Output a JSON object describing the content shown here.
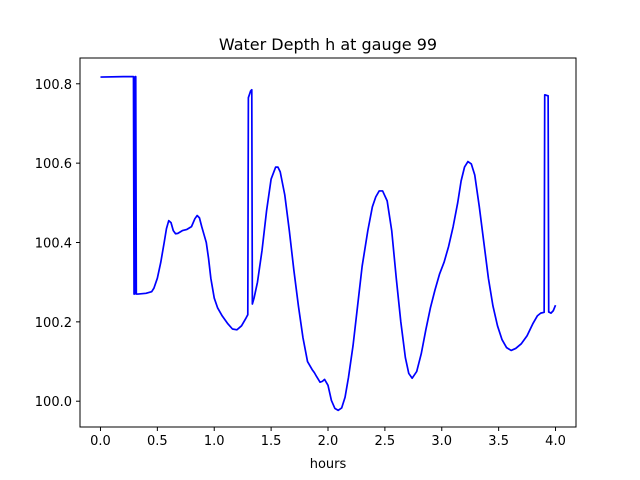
{
  "chart_data": {
    "type": "line",
    "title": "Water Depth h at gauge 99",
    "xlabel": "hours",
    "ylabel": "",
    "xlim": [
      -0.18,
      4.18
    ],
    "ylim": [
      99.935,
      100.865
    ],
    "x_ticks": [
      0.0,
      0.5,
      1.0,
      1.5,
      2.0,
      2.5,
      3.0,
      3.5,
      4.0
    ],
    "x_tick_labels": [
      "0.0",
      "0.5",
      "1.0",
      "1.5",
      "2.0",
      "2.5",
      "3.0",
      "3.5",
      "4.0"
    ],
    "y_ticks": [
      100.0,
      100.2,
      100.4,
      100.6,
      100.8
    ],
    "y_tick_labels": [
      "100.0",
      "100.2",
      "100.4",
      "100.6",
      "100.8"
    ],
    "grid": false,
    "series": [
      {
        "color": "#0000ff",
        "x": [
          0.0,
          0.2,
          0.29,
          0.295,
          0.3,
          0.305,
          0.31,
          0.315,
          0.32,
          0.33,
          0.4,
          0.45,
          0.47,
          0.5,
          0.53,
          0.56,
          0.58,
          0.6,
          0.62,
          0.64,
          0.66,
          0.68,
          0.72,
          0.76,
          0.8,
          0.83,
          0.85,
          0.87,
          0.89,
          0.91,
          0.93,
          0.95,
          0.97,
          1.0,
          1.03,
          1.07,
          1.12,
          1.16,
          1.2,
          1.24,
          1.28,
          1.295,
          1.3,
          1.32,
          1.33,
          1.335,
          1.35,
          1.38,
          1.42,
          1.46,
          1.5,
          1.54,
          1.56,
          1.58,
          1.62,
          1.66,
          1.7,
          1.74,
          1.78,
          1.82,
          1.86,
          1.88,
          1.9,
          1.93,
          1.95,
          1.97,
          2.0,
          2.03,
          2.06,
          2.09,
          2.12,
          2.15,
          2.18,
          2.22,
          2.26,
          2.3,
          2.35,
          2.39,
          2.42,
          2.45,
          2.48,
          2.52,
          2.56,
          2.6,
          2.64,
          2.68,
          2.71,
          2.74,
          2.78,
          2.82,
          2.86,
          2.9,
          2.94,
          2.98,
          3.02,
          3.06,
          3.1,
          3.14,
          3.17,
          3.2,
          3.23,
          3.26,
          3.29,
          3.33,
          3.37,
          3.41,
          3.45,
          3.49,
          3.53,
          3.57,
          3.61,
          3.65,
          3.7,
          3.75,
          3.8,
          3.84,
          3.87,
          3.9,
          3.905,
          3.91,
          3.93,
          3.935,
          3.94,
          3.96,
          3.98,
          4.0
        ],
        "y": [
          100.817,
          100.818,
          100.818,
          100.27,
          100.27,
          100.818,
          100.818,
          100.27,
          100.27,
          100.27,
          100.272,
          100.276,
          100.285,
          100.31,
          100.35,
          100.4,
          100.435,
          100.455,
          100.45,
          100.43,
          100.422,
          100.423,
          100.43,
          100.433,
          100.44,
          100.46,
          100.468,
          100.462,
          100.44,
          100.42,
          100.4,
          100.36,
          100.31,
          100.26,
          100.235,
          100.215,
          100.195,
          100.182,
          100.18,
          100.19,
          100.21,
          100.218,
          100.765,
          100.782,
          100.785,
          100.245,
          100.26,
          100.3,
          100.38,
          100.48,
          100.56,
          100.59,
          100.59,
          100.578,
          100.52,
          100.43,
          100.33,
          100.24,
          100.16,
          100.1,
          100.08,
          100.072,
          100.062,
          100.048,
          100.05,
          100.055,
          100.04,
          100.002,
          99.982,
          99.977,
          99.983,
          100.01,
          100.06,
          100.14,
          100.24,
          100.34,
          100.43,
          100.49,
          100.515,
          100.53,
          100.53,
          100.505,
          100.43,
          100.31,
          100.2,
          100.11,
          100.07,
          100.058,
          100.075,
          100.12,
          100.18,
          100.235,
          100.28,
          100.32,
          100.35,
          100.39,
          100.44,
          100.5,
          100.555,
          100.59,
          100.604,
          100.598,
          100.57,
          100.49,
          100.4,
          100.31,
          100.24,
          100.19,
          100.155,
          100.135,
          100.128,
          100.133,
          100.145,
          100.165,
          100.195,
          100.215,
          100.222,
          100.224,
          100.772,
          100.772,
          100.77,
          100.77,
          100.225,
          100.222,
          100.228,
          100.242
        ]
      }
    ]
  }
}
